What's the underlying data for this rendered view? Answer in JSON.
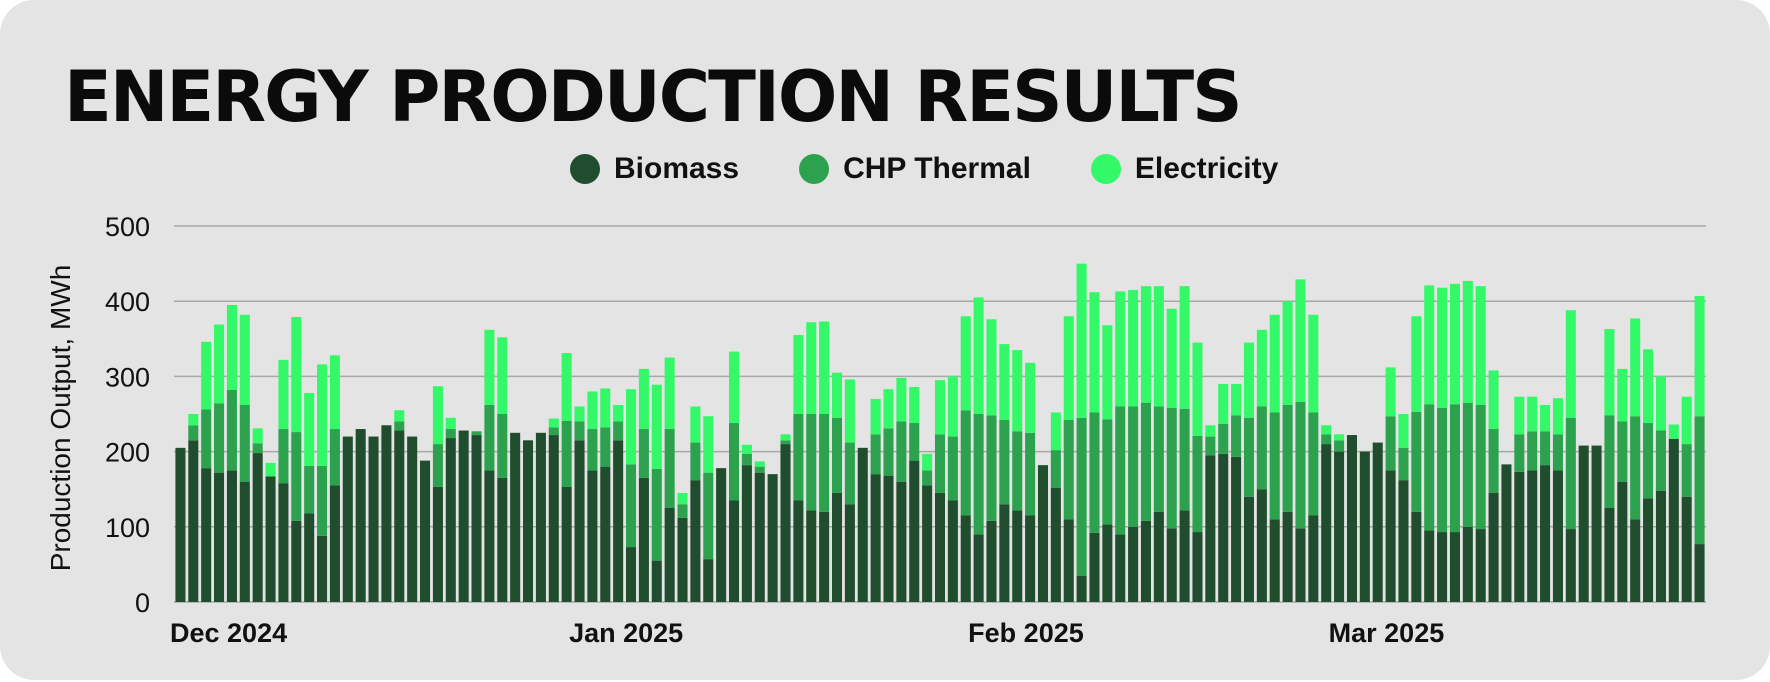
{
  "chart_data": {
    "type": "bar",
    "stacked": true,
    "title": "ENERGY PRODUCTION RESULTS",
    "xlabel": "",
    "ylabel": "Production Output, MWh",
    "ylim": [
      0,
      500
    ],
    "yticks": [
      0,
      100,
      200,
      300,
      400,
      500
    ],
    "grid": "horizontal",
    "legend_position": "top-center",
    "x_tick_labels": [
      {
        "label": "Dec 2024",
        "index": 0
      },
      {
        "label": "Jan 2025",
        "index": 31
      },
      {
        "label": "Feb 2025",
        "index": 62
      },
      {
        "label": "Mar 2025",
        "index": 90
      }
    ],
    "series": [
      {
        "name": "Biomass",
        "color": "#1f4d2d",
        "values": [
          205,
          215,
          178,
          172,
          175,
          160,
          198,
          167,
          158,
          108,
          118,
          88,
          155,
          220,
          230,
          220,
          235,
          228,
          220,
          188,
          153,
          218,
          228,
          222,
          175,
          165,
          225,
          215,
          225,
          222,
          153,
          215,
          175,
          180,
          215,
          73,
          165,
          55,
          125,
          112,
          162,
          57,
          178,
          135,
          182,
          172,
          170,
          210,
          135,
          122,
          120,
          145,
          130,
          205,
          170,
          168,
          160,
          188,
          155,
          145,
          135,
          115,
          90,
          108,
          130,
          122,
          115,
          182,
          152,
          110,
          35,
          92,
          103,
          90,
          100,
          108,
          120,
          98,
          122,
          93,
          195,
          197,
          193,
          140,
          150,
          110,
          120,
          98,
          115,
          210,
          200,
          222,
          200,
          212,
          175,
          162,
          120,
          95,
          93,
          93,
          100,
          97,
          145,
          183,
          173,
          175,
          182,
          175,
          97,
          208,
          208,
          125,
          160,
          110,
          138,
          148,
          217,
          140,
          77
        ]
      },
      {
        "name": "CHP Thermal",
        "color": "#2da24e",
        "values": [
          0,
          20,
          78,
          92,
          107,
          102,
          13,
          0,
          72,
          118,
          63,
          93,
          75,
          0,
          0,
          0,
          0,
          12,
          0,
          0,
          57,
          12,
          0,
          5,
          87,
          85,
          0,
          0,
          0,
          10,
          88,
          25,
          55,
          52,
          25,
          110,
          65,
          122,
          105,
          18,
          50,
          115,
          0,
          103,
          15,
          8,
          0,
          5,
          115,
          128,
          130,
          100,
          82,
          0,
          53,
          63,
          80,
          50,
          20,
          78,
          85,
          140,
          160,
          140,
          112,
          105,
          110,
          0,
          50,
          132,
          210,
          160,
          140,
          170,
          160,
          157,
          140,
          160,
          135,
          128,
          25,
          40,
          55,
          105,
          110,
          142,
          142,
          168,
          137,
          13,
          15,
          0,
          0,
          0,
          72,
          43,
          133,
          168,
          165,
          170,
          165,
          165,
          85,
          0,
          50,
          52,
          45,
          48,
          148,
          0,
          0,
          123,
          80,
          137,
          100,
          80,
          0,
          70,
          170
        ]
      },
      {
        "name": "Electricity",
        "color": "#33f968",
        "values": [
          0,
          15,
          90,
          105,
          113,
          120,
          20,
          18,
          92,
          153,
          97,
          135,
          98,
          0,
          0,
          0,
          0,
          15,
          0,
          0,
          77,
          15,
          0,
          0,
          100,
          102,
          0,
          0,
          0,
          12,
          90,
          20,
          50,
          52,
          22,
          100,
          80,
          112,
          95,
          15,
          48,
          75,
          0,
          95,
          12,
          7,
          0,
          8,
          105,
          122,
          123,
          60,
          84,
          0,
          47,
          52,
          58,
          48,
          22,
          72,
          80,
          125,
          155,
          128,
          101,
          108,
          93,
          0,
          50,
          138,
          205,
          160,
          125,
          153,
          155,
          155,
          160,
          132,
          163,
          124,
          15,
          53,
          42,
          100,
          102,
          130,
          138,
          163,
          130,
          12,
          8,
          0,
          0,
          0,
          65,
          45,
          127,
          158,
          160,
          160,
          162,
          158,
          78,
          0,
          50,
          46,
          35,
          48,
          143,
          0,
          0,
          115,
          70,
          130,
          98,
          72,
          19,
          63,
          160
        ]
      }
    ]
  }
}
